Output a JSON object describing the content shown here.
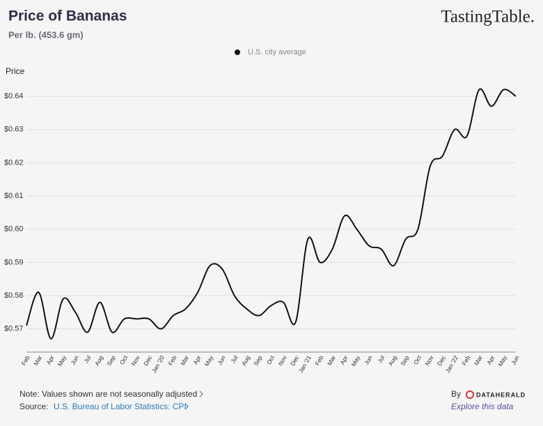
{
  "brand": "TastingTable.",
  "chart_data": {
    "type": "line",
    "title": "Price of Bananas",
    "subtitle": "Per lb. (453.6 gm)",
    "y_label": "Price",
    "categories": [
      "Feb",
      "Mar",
      "Apr",
      "May",
      "Jun",
      "Jul",
      "Aug",
      "Sep",
      "Oct",
      "Nov",
      "Dec",
      "Jan '20",
      "Feb",
      "Mar",
      "Apr",
      "May",
      "Jun",
      "Jul",
      "Aug",
      "Sep",
      "Oct",
      "Nov",
      "Dec",
      "Jan '21",
      "Feb",
      "Mar",
      "Apr",
      "May",
      "Jun",
      "Jul",
      "Aug",
      "Sep",
      "Oct",
      "Nov",
      "Dec",
      "Jan '22",
      "Feb",
      "Mar",
      "Apr",
      "May",
      "Jun"
    ],
    "series": [
      {
        "name": "U.S. city average",
        "color": "#111111",
        "values": [
          0.571,
          0.581,
          0.567,
          0.579,
          0.575,
          0.569,
          0.578,
          0.569,
          0.573,
          0.573,
          0.573,
          0.57,
          0.574,
          0.576,
          0.581,
          0.589,
          0.588,
          0.58,
          0.576,
          0.574,
          0.577,
          0.578,
          0.572,
          0.597,
          0.59,
          0.594,
          0.604,
          0.6,
          0.595,
          0.594,
          0.589,
          0.597,
          0.6,
          0.619,
          0.622,
          0.63,
          0.628,
          0.642,
          0.637,
          0.642,
          0.64
        ]
      }
    ],
    "ylim": [
      0.563,
      0.648
    ],
    "yticks": [
      {
        "value": 0.57,
        "label": "$0.57"
      },
      {
        "value": 0.58,
        "label": "$0.58"
      },
      {
        "value": 0.59,
        "label": "$0.59"
      },
      {
        "value": 0.6,
        "label": "$0.60"
      },
      {
        "value": 0.61,
        "label": "$0.61"
      },
      {
        "value": 0.62,
        "label": "$0.62"
      },
      {
        "value": 0.63,
        "label": "$0.63"
      },
      {
        "value": 0.64,
        "label": "$0.64"
      }
    ],
    "grid": true
  },
  "footer": {
    "note": "Note: Values shown are not seasonally adjusted",
    "source_label": "Source:",
    "source_link": "U.S. Bureau of Labor Statistics: CPI",
    "by": "By",
    "publisher": "DATAHERALD",
    "explore": "Explore this data"
  }
}
